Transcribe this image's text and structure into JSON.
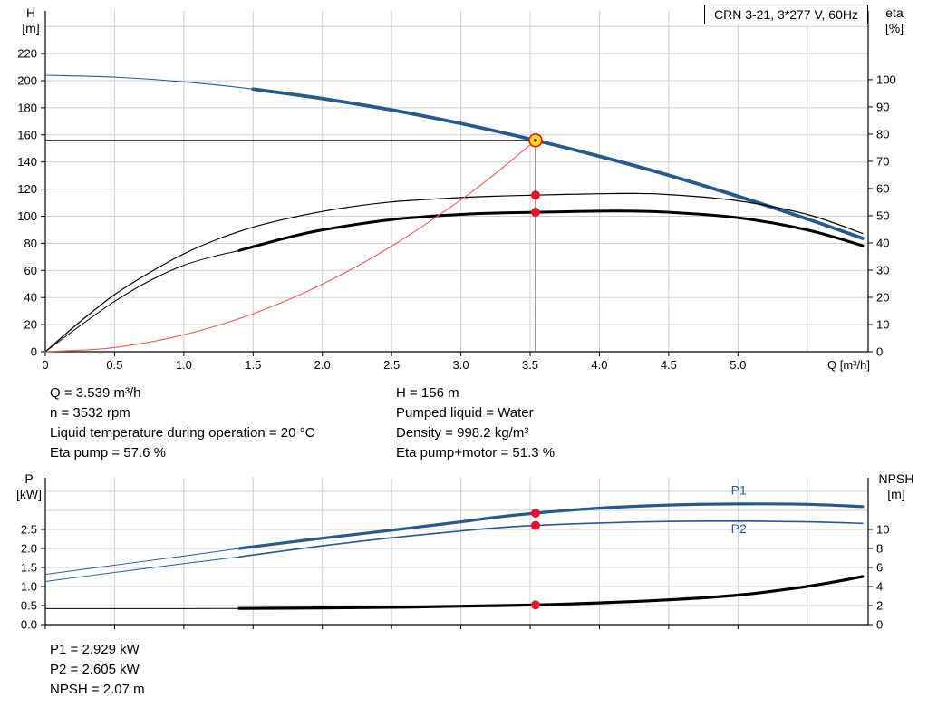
{
  "colors": {
    "grid": "#cfcfcf",
    "axis": "#000000",
    "curve_blue": "#27598a",
    "curve_black": "#000000",
    "system_red": "#e05f5f",
    "dot_red": "#e8112d",
    "duty_yellow": "#ffdf00",
    "duty_ring": "#e8112d"
  },
  "info": {
    "top_left": [
      "Q = 3.539 m³/h",
      "n = 3532 rpm",
      "Liquid temperature during operation = 20 °C",
      "Eta pump = 57.6 %"
    ],
    "top_right": [
      "H = 156 m",
      "Pumped liquid = Water",
      "Density = 998.2 kg/m³",
      "Eta pump+motor = 51.3 %"
    ],
    "bottom": [
      "P1 = 2.929 kW",
      "P2 = 2.605 kW",
      "NPSH = 2.07 m"
    ]
  },
  "chart_data": [
    {
      "type": "line",
      "id": "qh-eta-chart",
      "title": "CRN 3-21, 3*277 V, 60Hz",
      "xlabel": "Q [m³/h]",
      "ylabel_left": [
        "H",
        "[m]"
      ],
      "ylabel_right": [
        "eta",
        "[%]"
      ],
      "xlim": [
        0,
        5.94
      ],
      "ylim_left": [
        0,
        251.5
      ],
      "ylim_right": [
        0,
        125.3
      ],
      "grid": true,
      "xticks": [
        0,
        0.5,
        1,
        1.5,
        2,
        2.5,
        3,
        3.5,
        4,
        4.5,
        5
      ],
      "xtick_labels": [
        "0",
        "0.5",
        "1.0",
        "1.5",
        "2.0",
        "2.5",
        "3.0",
        "3.5",
        "4.0",
        "4.5",
        "5.0"
      ],
      "xgrid": [
        0.5,
        1,
        1.5,
        2,
        2.5,
        3,
        3.5,
        4,
        4.5,
        5,
        5.5
      ],
      "yticks_left": [
        0,
        20,
        40,
        60,
        80,
        100,
        120,
        140,
        160,
        180,
        200,
        220
      ],
      "yticks_right": [
        0,
        10,
        20,
        30,
        40,
        50,
        60,
        70,
        80,
        90,
        100
      ],
      "ygrid_left": [
        20,
        40,
        60,
        80,
        100,
        120,
        140,
        160,
        180,
        200,
        220,
        240
      ],
      "series": [
        {
          "name": "head-curve",
          "label": "H",
          "axis": "left",
          "color": "#27598a",
          "width": 3.8,
          "width_thin": 1.1,
          "thick_from": 1.4,
          "points": [
            [
              0,
              204
            ],
            [
              0.5,
              202.6
            ],
            [
              1,
              199.1
            ],
            [
              1.5,
              193.8
            ],
            [
              2,
              186.8
            ],
            [
              2.5,
              178.4
            ],
            [
              3,
              168.4
            ],
            [
              3.539,
              156
            ],
            [
              4,
              144.2
            ],
            [
              4.5,
              130.2
            ],
            [
              5,
              114.7
            ],
            [
              5.5,
              98
            ],
            [
              5.9,
              83.7
            ]
          ]
        },
        {
          "name": "eta-pump-curve",
          "label": "Eta pump",
          "axis": "right",
          "color": "#000000",
          "width": 1.2,
          "points": [
            [
              0,
              0
            ],
            [
              0.25,
              11
            ],
            [
              0.5,
              21
            ],
            [
              0.75,
              29
            ],
            [
              1,
              36
            ],
            [
              1.25,
              41.5
            ],
            [
              1.5,
              45.8
            ],
            [
              1.75,
              49
            ],
            [
              2,
              51.6
            ],
            [
              2.25,
              53.6
            ],
            [
              2.5,
              55.1
            ],
            [
              2.75,
              56
            ],
            [
              3,
              56.7
            ],
            [
              3.25,
              57.2
            ],
            [
              3.539,
              57.6
            ],
            [
              4,
              58.1
            ],
            [
              4.25,
              58.2
            ],
            [
              4.5,
              57.8
            ],
            [
              5,
              55.5
            ],
            [
              5.5,
              50.5
            ],
            [
              5.9,
              43.5
            ]
          ]
        },
        {
          "name": "eta-pump-motor-curve",
          "label": "Eta pump+motor",
          "axis": "right",
          "color": "#000000",
          "width": 3,
          "width_thin": 1,
          "thick_from": 1.4,
          "points": [
            [
              0,
              0
            ],
            [
              0.25,
              9.5
            ],
            [
              0.5,
              18.5
            ],
            [
              0.75,
              26
            ],
            [
              1,
              31.8
            ],
            [
              1.25,
              35.5
            ],
            [
              1.4,
              37.2
            ],
            [
              1.75,
              42
            ],
            [
              2,
              44.8
            ],
            [
              2.5,
              48.6
            ],
            [
              3,
              50.5
            ],
            [
              3.25,
              51
            ],
            [
              3.539,
              51.3
            ],
            [
              4,
              51.7
            ],
            [
              4.25,
              51.7
            ],
            [
              4.5,
              51.3
            ],
            [
              5,
              49.3
            ],
            [
              5.5,
              44.8
            ],
            [
              5.9,
              39
            ]
          ]
        },
        {
          "name": "system-curve",
          "label": "System curve",
          "axis": "left",
          "color": "#e05f5f",
          "width": 1.1,
          "points": [
            [
              0,
              0
            ],
            [
              0.5,
              3.1
            ],
            [
              1,
              12.5
            ],
            [
              1.5,
              28
            ],
            [
              2,
              49.8
            ],
            [
              2.5,
              77.9
            ],
            [
              3,
              112.1
            ],
            [
              3.25,
              131.6
            ],
            [
              3.539,
              156
            ]
          ]
        }
      ],
      "crosshair": {
        "q": 3.539,
        "h": 156
      },
      "markers": [
        {
          "name": "duty-point",
          "q": 3.539,
          "v": 156,
          "axis": "left",
          "style": "duty"
        },
        {
          "name": "eta-pump-point",
          "q": 3.539,
          "v": 57.6,
          "axis": "right",
          "style": "dot"
        },
        {
          "name": "eta-pump-motor-point",
          "q": 3.539,
          "v": 51.3,
          "axis": "right",
          "style": "dot"
        }
      ]
    },
    {
      "type": "line",
      "id": "power-npsh-chart",
      "ylabel_left": [
        "P",
        "[kW]"
      ],
      "ylabel_right": [
        "NPSH",
        "[m]"
      ],
      "xlim": [
        0,
        5.94
      ],
      "ylim_left": [
        0,
        3.857
      ],
      "ylim_right": [
        0,
        15.43
      ],
      "grid": true,
      "xticks": [
        0,
        0.5,
        1,
        1.5,
        2,
        2.5,
        3,
        3.5,
        4,
        4.5,
        5
      ],
      "xtick_labels": [],
      "xgrid": [
        0.5,
        1,
        1.5,
        2,
        2.5,
        3,
        3.5,
        4,
        4.5,
        5,
        5.5
      ],
      "yticks_left": [
        0,
        0.5,
        1,
        1.5,
        2,
        2.5
      ],
      "ytick_labels_left": [
        "0.0",
        "0.5",
        "1.0",
        "1.5",
        "2.0",
        "2.5"
      ],
      "yticks_right": [
        0,
        2,
        4,
        6,
        8,
        10
      ],
      "ygrid_left": [
        0.5,
        1,
        1.5,
        2,
        2.5,
        3,
        3.5
      ],
      "series": [
        {
          "name": "p1-curve",
          "label": "P1",
          "axis": "left",
          "color": "#27598a",
          "width": 3.2,
          "width_thin": 1,
          "thick_from": 1.4,
          "label_pos": [
            4.95,
            3.42
          ],
          "points": [
            [
              0,
              1.32
            ],
            [
              0.5,
              1.56
            ],
            [
              1,
              1.8
            ],
            [
              1.4,
              2.0
            ],
            [
              1.75,
              2.16
            ],
            [
              2,
              2.27
            ],
            [
              2.5,
              2.48
            ],
            [
              3,
              2.7
            ],
            [
              3.25,
              2.82
            ],
            [
              3.539,
              2.929
            ],
            [
              4,
              3.06
            ],
            [
              4.5,
              3.14
            ],
            [
              5,
              3.17
            ],
            [
              5.5,
              3.16
            ],
            [
              5.9,
              3.1
            ]
          ]
        },
        {
          "name": "p2-curve",
          "label": "P2",
          "axis": "left",
          "color": "#27598a",
          "width": 1.6,
          "width_thin": 1,
          "thick_from": 1.4,
          "label_pos": [
            4.95,
            2.4
          ],
          "points": [
            [
              0,
              1.13
            ],
            [
              0.5,
              1.37
            ],
            [
              1,
              1.6
            ],
            [
              1.4,
              1.78
            ],
            [
              2,
              2.07
            ],
            [
              2.5,
              2.28
            ],
            [
              3,
              2.46
            ],
            [
              3.25,
              2.54
            ],
            [
              3.539,
              2.605
            ],
            [
              4,
              2.67
            ],
            [
              4.5,
              2.71
            ],
            [
              5,
              2.72
            ],
            [
              5.5,
              2.7
            ],
            [
              5.9,
              2.66
            ]
          ]
        },
        {
          "name": "npsh-curve",
          "label": "NPSH",
          "axis": "right",
          "color": "#000000",
          "width": 3.2,
          "width_thin": 1,
          "thick_from": 1.4,
          "points": [
            [
              0,
              1.68
            ],
            [
              1,
              1.68
            ],
            [
              1.4,
              1.7
            ],
            [
              2,
              1.75
            ],
            [
              2.5,
              1.82
            ],
            [
              3,
              1.93
            ],
            [
              3.539,
              2.07
            ],
            [
              4,
              2.28
            ],
            [
              4.5,
              2.6
            ],
            [
              5,
              3.1
            ],
            [
              5.4,
              3.8
            ],
            [
              5.7,
              4.5
            ],
            [
              5.9,
              5.05
            ]
          ]
        }
      ],
      "markers": [
        {
          "name": "p1-point",
          "q": 3.539,
          "v": 2.929,
          "axis": "left",
          "style": "dot"
        },
        {
          "name": "p2-point",
          "q": 3.539,
          "v": 2.605,
          "axis": "left",
          "style": "dot"
        },
        {
          "name": "npsh-point",
          "q": 3.539,
          "v": 2.07,
          "axis": "right",
          "style": "dot"
        }
      ]
    }
  ]
}
